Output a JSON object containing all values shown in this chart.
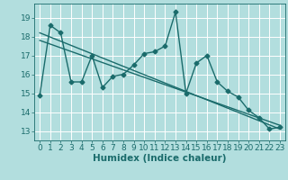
{
  "title": "",
  "xlabel": "Humidex (Indice chaleur)",
  "ylabel": "",
  "background_color": "#b2dede",
  "grid_color": "#ffffff",
  "line_color": "#1a6b6b",
  "xlim": [
    -0.5,
    23.5
  ],
  "ylim": [
    12.5,
    19.75
  ],
  "yticks": [
    13,
    14,
    15,
    16,
    17,
    18,
    19
  ],
  "xticks": [
    0,
    1,
    2,
    3,
    4,
    5,
    6,
    7,
    8,
    9,
    10,
    11,
    12,
    13,
    14,
    15,
    16,
    17,
    18,
    19,
    20,
    21,
    22,
    23
  ],
  "series1_x": [
    0,
    1,
    2,
    3,
    4,
    5,
    6,
    7,
    8,
    9,
    10,
    11,
    12,
    13,
    14,
    15,
    16,
    17,
    18,
    19,
    20,
    21,
    22,
    23
  ],
  "series1_y": [
    14.9,
    18.6,
    18.2,
    15.6,
    15.6,
    17.0,
    15.3,
    15.9,
    16.0,
    16.5,
    17.1,
    17.2,
    17.5,
    19.3,
    15.0,
    16.6,
    17.0,
    15.6,
    15.1,
    14.8,
    14.1,
    13.7,
    13.1,
    13.2
  ],
  "trend1_x": [
    0,
    23
  ],
  "trend1_y": [
    18.2,
    13.1
  ],
  "trend2_x": [
    0,
    23
  ],
  "trend2_y": [
    17.8,
    13.3
  ],
  "marker_size": 2.5,
  "line_width": 1.0,
  "font_size": 6.5,
  "xlabel_fontsize": 7.5
}
